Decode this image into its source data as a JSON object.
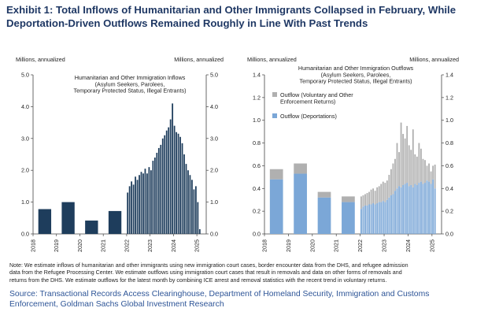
{
  "title_lines": [
    "Exhibit 1: Total Inflows of Humanitarian and Other Immigrants Collapsed in February, While",
    "Deportation-Driven Outflows Remained Roughly in Line With Past Trends"
  ],
  "note_lines": [
    "Note: We estimate inflows of humanitarian and other immigrants using new immigration court cases, border encounter data from the DHS, and refugee admission",
    "data from the Refugee Processing Center. We estimate outflows using immigration court cases that result in removals and data on other forms of removals and",
    "returns from the DHS.  We estimate outflows for the latest month by combining ICE arrest and removal statistics with the recent trend in voluntary returns."
  ],
  "source_lines": [
    "Source: Transactional Records Access Clearinghouse, Department of Homeland Security, Immigration and Customs",
    "Enforcement, Goldman Sachs Global Investment Research"
  ],
  "colors": {
    "title": "#1f3864",
    "inflow": "#1e3d5c",
    "outflow_voluntary": "#b0b0b0",
    "outflow_deport": "#7ba7d7",
    "source": "#2e5597"
  },
  "chart_data": [
    {
      "type": "bar",
      "unit_left": "Millions, annualized",
      "unit_right": "Millions, annualized",
      "title_lines": [
        "Humanitarian and Other Immigration Inflows",
        "(Asylum Seekers, Parolees,",
        "Temporary Protected Status, Illegal Entrants)"
      ],
      "ylim": [
        0,
        5
      ],
      "yticks": [
        "0.0",
        "1.0",
        "2.0",
        "3.0",
        "4.0",
        "5.0"
      ],
      "xticks": [
        "2018",
        "2019",
        "2020",
        "2021",
        "2022",
        "2023",
        "2024",
        "2025"
      ],
      "xlim": [
        2018,
        2025.4
      ],
      "annual_bars": [
        {
          "x": 2018.5,
          "value": 0.78
        },
        {
          "x": 2019.5,
          "value": 1.0
        },
        {
          "x": 2020.5,
          "value": 0.42
        },
        {
          "x": 2021.5,
          "value": 0.72
        }
      ],
      "monthly_start": 2022.0,
      "monthly_values": [
        1.3,
        1.5,
        1.65,
        1.55,
        1.8,
        1.7,
        1.85,
        1.95,
        1.9,
        2.05,
        1.9,
        2.1,
        2.0,
        2.3,
        2.4,
        2.55,
        2.7,
        2.8,
        3.0,
        3.1,
        3.25,
        3.35,
        3.6,
        4.1,
        3.4,
        3.2,
        3.15,
        3.05,
        2.85,
        2.5,
        2.2,
        2.0,
        1.85,
        1.7,
        1.4,
        1.5,
        1.0,
        0.15
      ]
    },
    {
      "type": "bar",
      "stacked": true,
      "unit_left": "Millions, annualized",
      "unit_right": "Millions, annualized",
      "title_lines": [
        "Humanitarian and Other Immigration Outflows",
        "(Asylum Seekers, Parolees,",
        "Temporary Protected Status, Illegal Entrants)"
      ],
      "legend": [
        {
          "name_lines": [
            "Outflow (Voluntary and Other",
            "Enforcement Returns)"
          ],
          "color": "#b0b0b0"
        },
        {
          "name_lines": [
            "Outflow (Deportations)"
          ],
          "color": "#7ba7d7"
        }
      ],
      "ylim": [
        0,
        1.4
      ],
      "yticks": [
        "0.0",
        "0.2",
        "0.4",
        "0.6",
        "0.8",
        "1.0",
        "1.2",
        "1.4"
      ],
      "xticks": [
        "2018",
        "2019",
        "2020",
        "2021",
        "2022",
        "2023",
        "2024",
        "2025"
      ],
      "xlim": [
        2018,
        2025.4
      ],
      "annual_bars": [
        {
          "x": 2018.5,
          "deport": 0.48,
          "voluntary": 0.09
        },
        {
          "x": 2019.5,
          "deport": 0.53,
          "voluntary": 0.09
        },
        {
          "x": 2020.5,
          "deport": 0.32,
          "voluntary": 0.05
        },
        {
          "x": 2021.5,
          "deport": 0.28,
          "voluntary": 0.05
        }
      ],
      "monthly_start": 2022.0,
      "monthly_deport": [
        0.22,
        0.24,
        0.25,
        0.25,
        0.26,
        0.26,
        0.27,
        0.26,
        0.27,
        0.28,
        0.28,
        0.29,
        0.28,
        0.3,
        0.32,
        0.34,
        0.35,
        0.38,
        0.4,
        0.42,
        0.41,
        0.43,
        0.44,
        0.45,
        0.42,
        0.43,
        0.41,
        0.44,
        0.43,
        0.45,
        0.46,
        0.44,
        0.45,
        0.47,
        0.46,
        0.44,
        0.48,
        0.4
      ],
      "monthly_total": [
        0.33,
        0.34,
        0.35,
        0.36,
        0.37,
        0.39,
        0.4,
        0.38,
        0.41,
        0.42,
        0.44,
        0.46,
        0.45,
        0.47,
        0.52,
        0.57,
        0.62,
        0.66,
        0.8,
        0.72,
        0.98,
        0.88,
        0.84,
        0.95,
        0.78,
        0.74,
        0.92,
        0.7,
        0.68,
        0.8,
        0.75,
        0.66,
        0.65,
        0.6,
        0.62,
        0.55,
        0.6,
        0.61
      ]
    }
  ]
}
